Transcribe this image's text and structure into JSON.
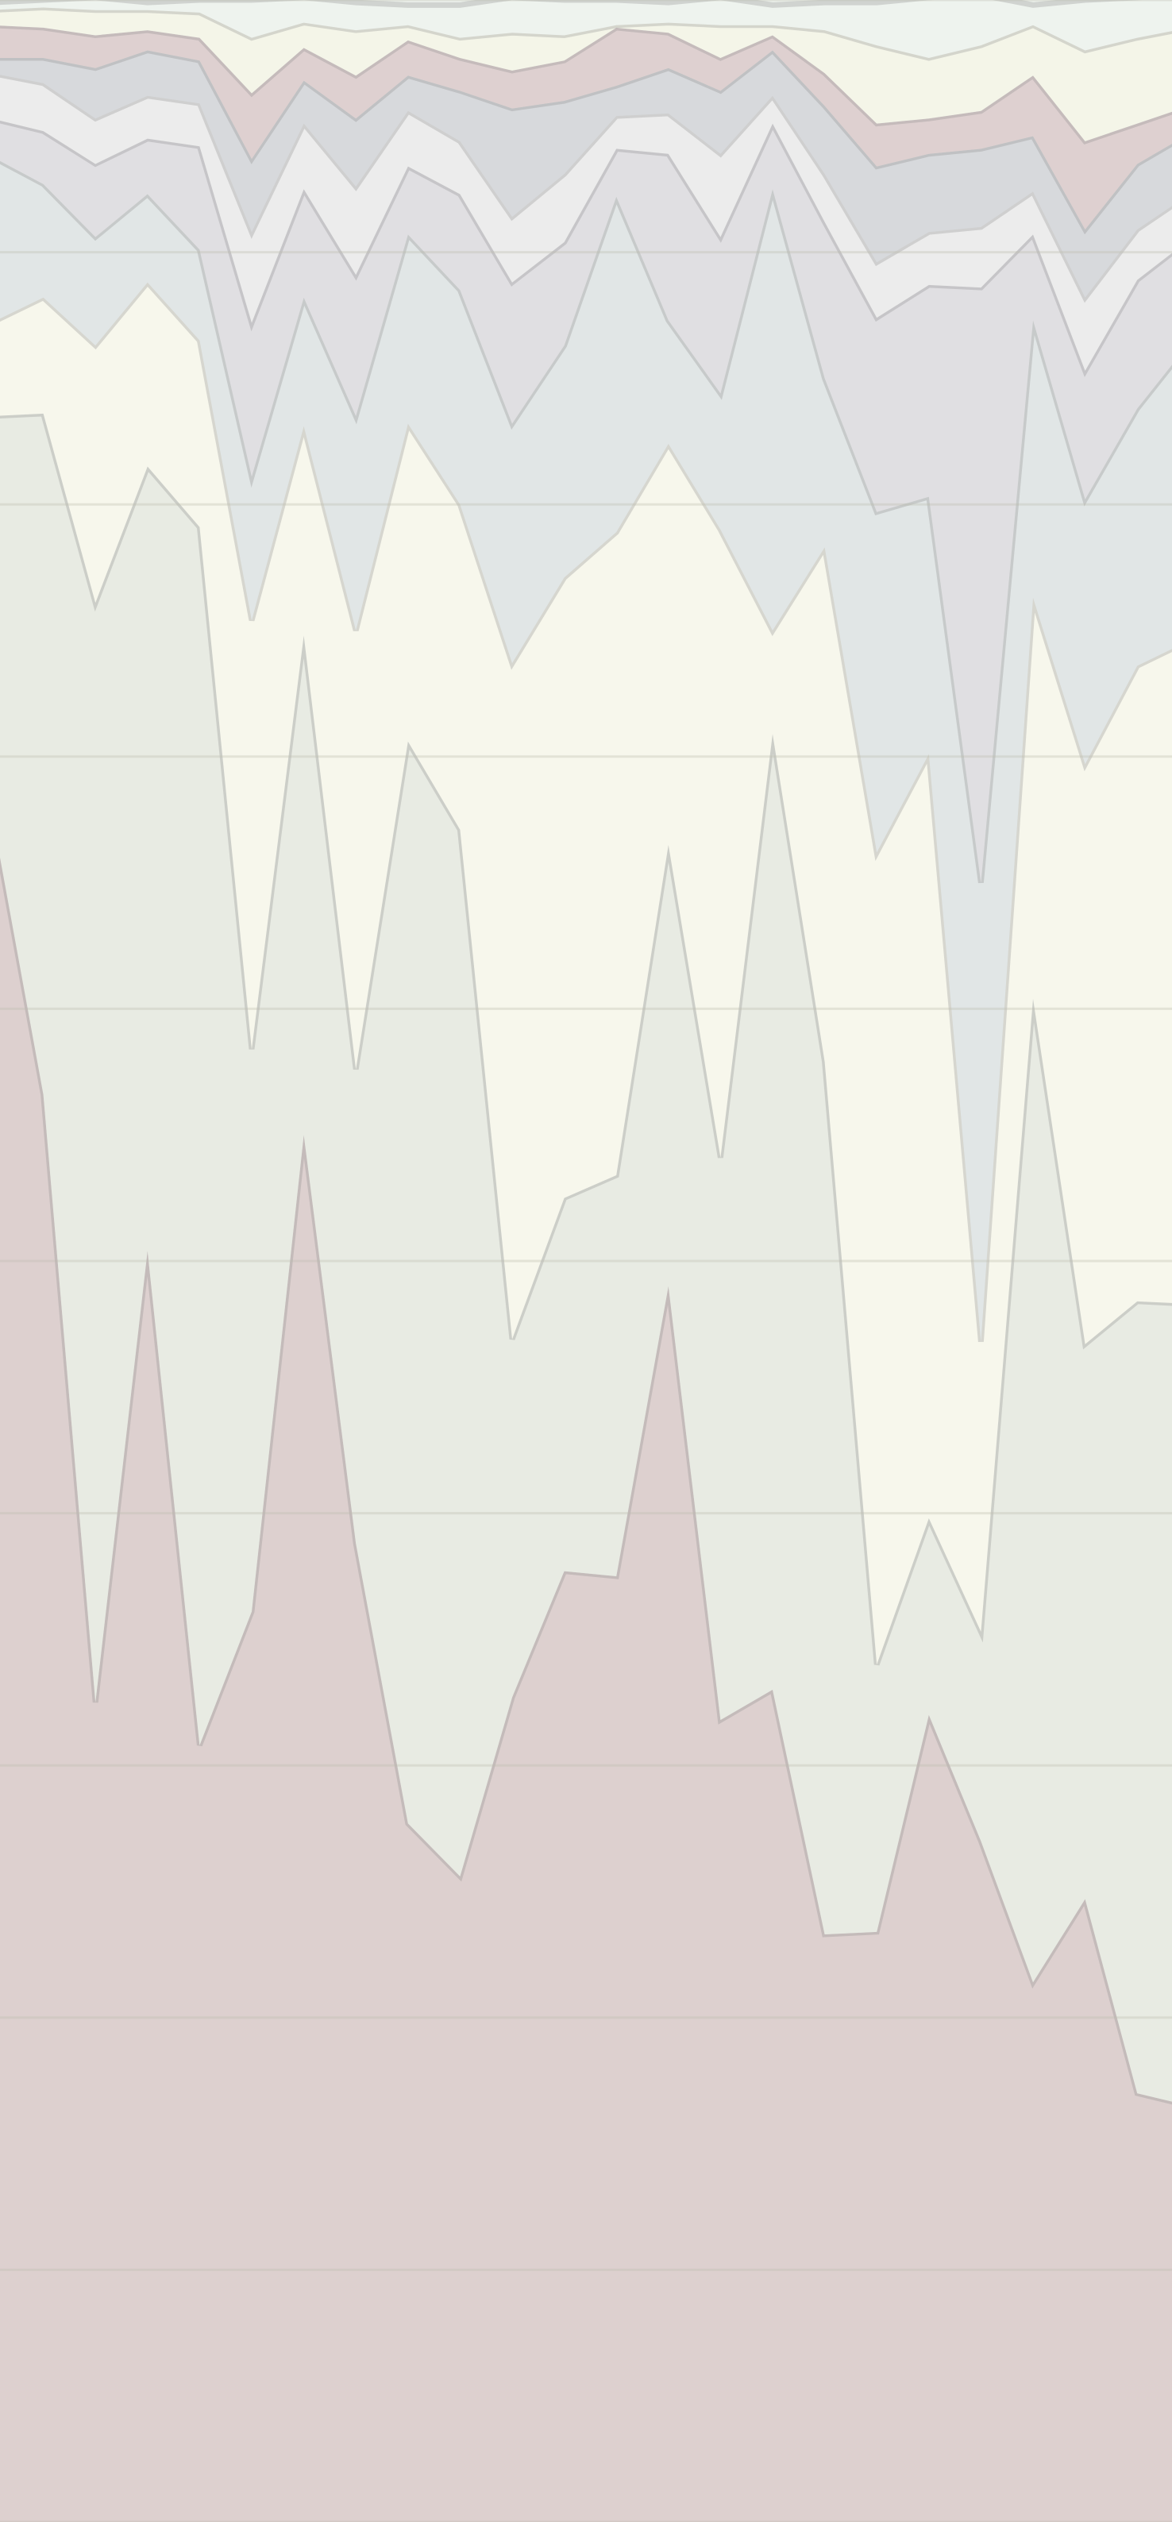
{
  "chart_data": {
    "type": "stacked-area",
    "categories": [
      null,
      null,
      null,
      null,
      null,
      null,
      null,
      null,
      null,
      null,
      null,
      null,
      null,
      null,
      null,
      null,
      null,
      null,
      null,
      null,
      null,
      null,
      null,
      null
    ],
    "ylim": [
      0,
      100
    ],
    "yticks": [
      0,
      10,
      20,
      30,
      40,
      50,
      60,
      70,
      80,
      90,
      100
    ],
    "grid": true,
    "series": [
      {
        "color": "#ddd0cf",
        "values": [
          67.9,
          56.6,
          32.5,
          50.4,
          30.8,
          36.1,
          55.0,
          38.8,
          27.7,
          25.6,
          32.7,
          37.7,
          37.5,
          49.0,
          31.8,
          33.0,
          23.3,
          23.4,
          32.0,
          27.0,
          21.4,
          24.7,
          17.0,
          16.5
        ]
      },
      {
        "color": "#e8ebe3",
        "values": [
          15.6,
          27.0,
          43.6,
          31.1,
          48.3,
          22.3,
          19.8,
          18.8,
          42.9,
          41.5,
          14.2,
          14.8,
          15.9,
          17.5,
          22.3,
          37.9,
          34.6,
          10.6,
          7.8,
          8.3,
          39.0,
          22.0,
          31.4,
          31.8
        ]
      },
      {
        "color": "#f7f7ec",
        "values": [
          3.7,
          4.6,
          10.2,
          7.3,
          7.4,
          17.0,
          8.3,
          17.4,
          12.6,
          12.9,
          26.8,
          24.6,
          25.5,
          15.9,
          24.9,
          4.1,
          20.4,
          32.2,
          30.3,
          11.5,
          15.9,
          23.0,
          25.2,
          26.3
        ]
      },
      {
        "color": "#e1e6e6",
        "values": [
          6.6,
          4.5,
          4.3,
          3.5,
          3.6,
          5.7,
          5.1,
          8.5,
          7.5,
          8.5,
          9.5,
          9.2,
          13.3,
          4.9,
          5.4,
          17.5,
          6.7,
          13.5,
          10.2,
          18.2,
          11.0,
          10.5,
          10.2,
          11.8
        ]
      },
      {
        "color": "#e0dfe2",
        "values": [
          1.5,
          2.1,
          2.9,
          2.2,
          4.1,
          6.1,
          4.3,
          5.6,
          2.7,
          3.8,
          5.6,
          4.1,
          1.9,
          6.6,
          6.2,
          2.6,
          6.2,
          7.7,
          8.4,
          23.6,
          3.4,
          5.1,
          5.1,
          4.1
        ]
      },
      {
        "color": "#ececec",
        "values": [
          1.8,
          1.9,
          1.8,
          1.7,
          1.7,
          3.6,
          2.6,
          3.5,
          2.2,
          2.1,
          2.6,
          2.7,
          1.3,
          1.6,
          3.3,
          1.1,
          1.9,
          2.2,
          2.1,
          2.4,
          1.7,
          2.9,
          2.0,
          1.8
        ]
      },
      {
        "color": "#d7d9dc",
        "values": [
          0.6,
          1.0,
          2.0,
          1.8,
          1.7,
          2.9,
          1.7,
          2.7,
          1.4,
          2.0,
          4.3,
          2.9,
          1.2,
          1.8,
          2.5,
          1.8,
          2.7,
          3.8,
          3.1,
          3.1,
          2.2,
          2.7,
          2.6,
          2.4
        ]
      },
      {
        "color": "#ded0d0",
        "values": [
          1.3,
          1.2,
          1.3,
          0.8,
          0.9,
          2.6,
          1.3,
          1.7,
          1.4,
          1.3,
          1.5,
          1.6,
          2.3,
          1.4,
          1.3,
          0.6,
          1.3,
          1.7,
          1.4,
          1.5,
          2.4,
          3.5,
          1.6,
          1.1
        ]
      },
      {
        "color": "#f4f5e8",
        "values": [
          0.6,
          0.8,
          1.0,
          0.8,
          1.0,
          2.2,
          1.0,
          1.8,
          0.6,
          0.8,
          1.5,
          1.0,
          0.1,
          0.4,
          1.3,
          0.4,
          1.7,
          3.1,
          2.4,
          2.6,
          2.0,
          3.6,
          3.4,
          3.1
        ]
      },
      {
        "color": "#eef3ee",
        "values": [
          0.3,
          0.3,
          0.5,
          0.3,
          0.5,
          1.5,
          1.0,
          1.1,
          0.8,
          1.3,
          1.4,
          1.4,
          1.0,
          0.8,
          1.1,
          0.8,
          1.1,
          1.7,
          2.4,
          2.0,
          0.8,
          2.0,
          1.6,
          1.3
        ]
      }
    ]
  }
}
